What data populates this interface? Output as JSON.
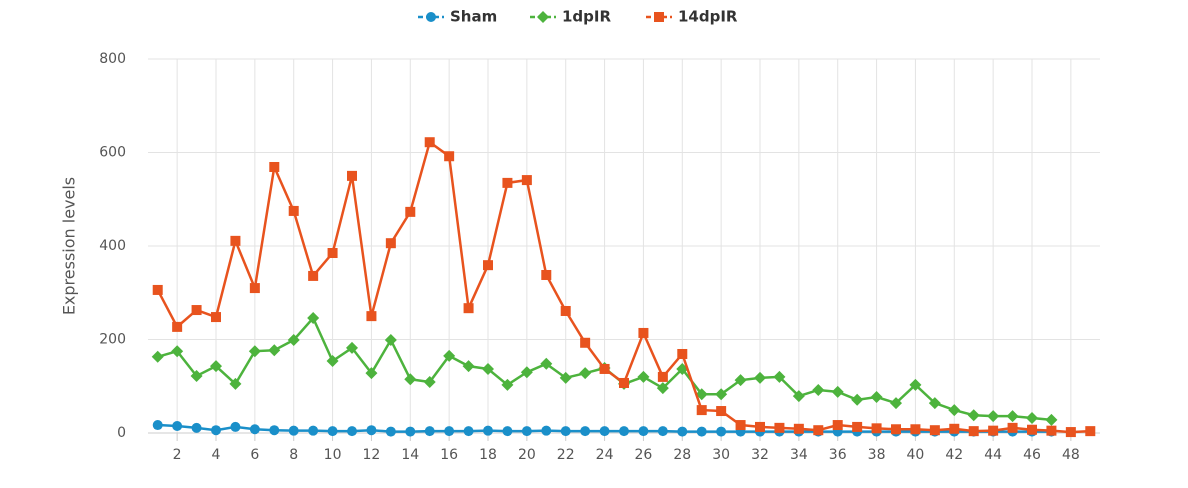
{
  "chart_data": {
    "type": "line",
    "y_label": "Expression levels",
    "x": [
      1,
      2,
      3,
      4,
      5,
      6,
      7,
      8,
      9,
      10,
      11,
      12,
      13,
      14,
      15,
      16,
      17,
      18,
      19,
      20,
      21,
      22,
      23,
      24,
      25,
      26,
      27,
      28,
      29,
      30,
      31,
      32,
      33,
      34,
      35,
      36,
      37,
      38,
      39,
      40,
      41,
      42,
      43,
      44,
      45,
      46,
      47,
      48,
      49
    ],
    "xlim": [
      0.5,
      49.5
    ],
    "xticks": [
      2,
      4,
      6,
      8,
      10,
      12,
      14,
      16,
      18,
      20,
      22,
      24,
      26,
      28,
      30,
      32,
      34,
      36,
      38,
      40,
      42,
      44,
      46,
      48
    ],
    "ylim": [
      0,
      800
    ],
    "yticks": [
      0,
      200,
      400,
      600,
      800
    ],
    "grid": true,
    "legend": "top",
    "series": [
      {
        "name": "Sham",
        "color": "#1a8fc9",
        "marker": "circle",
        "values": [
          17,
          15,
          11,
          6,
          13,
          8,
          6,
          5,
          5,
          4,
          4,
          6,
          3,
          3,
          4,
          4,
          4,
          5,
          4,
          4,
          5,
          4,
          4,
          4,
          4,
          4,
          4,
          3,
          3,
          3,
          3,
          3,
          3,
          3,
          3,
          3,
          3,
          3,
          3,
          3,
          3,
          3,
          3,
          3,
          3,
          3,
          3,
          null,
          null
        ]
      },
      {
        "name": "1dpIR",
        "color": "#4db33d",
        "marker": "diamond",
        "values": [
          163,
          175,
          122,
          143,
          105,
          175,
          177,
          199,
          246,
          154,
          182,
          128,
          199,
          115,
          109,
          165,
          143,
          137,
          103,
          130,
          148,
          118,
          128,
          139,
          105,
          120,
          96,
          137,
          83,
          83,
          113,
          118,
          120,
          79,
          92,
          88,
          71,
          77,
          64,
          103,
          64,
          49,
          38,
          36,
          36,
          32,
          28,
          null,
          null
        ]
      },
      {
        "name": "14dpIR",
        "color": "#e8531e",
        "marker": "square",
        "values": [
          306,
          227,
          263,
          248,
          411,
          310,
          569,
          475,
          336,
          385,
          550,
          250,
          406,
          473,
          622,
          592,
          267,
          359,
          535,
          541,
          338,
          261,
          193,
          137,
          107,
          214,
          120,
          169,
          49,
          47,
          17,
          13,
          11,
          9,
          6,
          17,
          13,
          10,
          8,
          8,
          6,
          9,
          4,
          5,
          11,
          7,
          5,
          2,
          4
        ]
      }
    ]
  }
}
